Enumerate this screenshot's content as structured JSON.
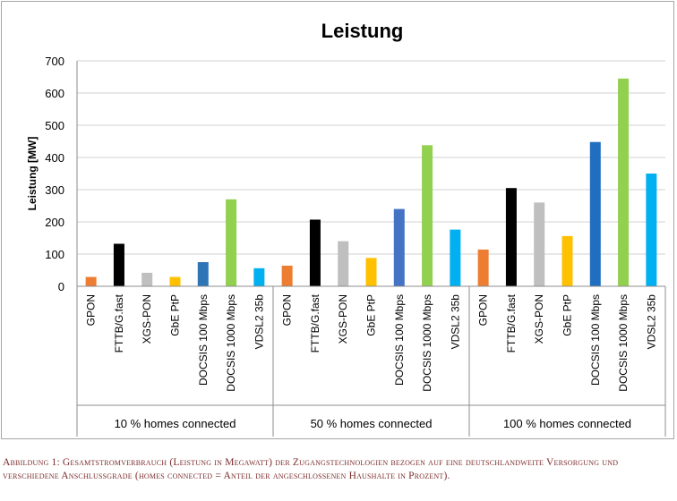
{
  "chart_data": {
    "type": "bar",
    "title": "Leistung",
    "ylabel": "Leistung [MW]",
    "xlabel": "",
    "ylim": [
      0,
      700
    ],
    "yticks": [
      0,
      100,
      200,
      300,
      400,
      500,
      600,
      700
    ],
    "grid": true,
    "groups": [
      {
        "label": "10 % homes connected",
        "categories": [
          "GPON",
          "FTTB/G.fast",
          "XGS-PON",
          "GbE PtP",
          "DOCSIS 100 Mbps",
          "DOCSIS 1000 Mbps",
          "VDSL2 35b"
        ],
        "values": [
          29,
          132,
          42,
          29,
          75,
          270,
          56
        ]
      },
      {
        "label": "50 % homes connected",
        "categories": [
          "GPON",
          "FTTB/G.fast",
          "XGS-PON",
          "GbE PtP",
          "DOCSIS 100 Mbps",
          "DOCSIS 1000 Mbps",
          "VDSL2 35b"
        ],
        "values": [
          64,
          207,
          140,
          88,
          240,
          438,
          176
        ]
      },
      {
        "label": "100 % homes connected",
        "categories": [
          "GPON",
          "FTTB/G.fast",
          "XGS-PON",
          "GbE PtP",
          "DOCSIS 100 Mbps",
          "DOCSIS 1000 Mbps",
          "VDSL2 35b"
        ],
        "values": [
          114,
          305,
          260,
          156,
          448,
          645,
          350
        ]
      }
    ],
    "colors": {
      "GPON": "#ed7d31",
      "FTTB/G.fast": "#000000",
      "XGS-PON": "#bfbfbf",
      "GbE PtP": "#ffc000",
      "DOCSIS 100 Mbps": [
        "#2e75b6",
        "#4472c4",
        "#1f6ebf"
      ],
      "DOCSIS 1000 Mbps": "#92d050",
      "VDSL2 35b": "#00b0f0"
    }
  },
  "caption": "Abbildung 1: Gesamtstromverbrauch (Leistung in Megawatt) der Zugangstechnologien bezogen auf eine deutschlandweite Versorgung und verschiedene Anschlussgrade (homes connected = Anteil der angeschlossenen Haushalte in Prozent)."
}
